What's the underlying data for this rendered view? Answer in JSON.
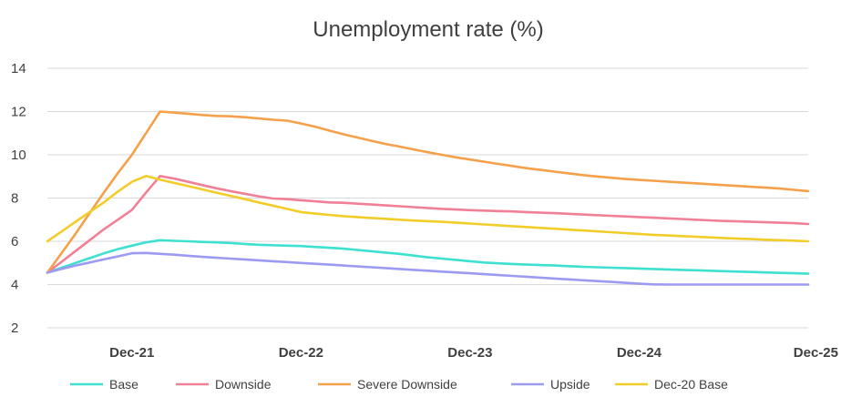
{
  "chart_data": {
    "type": "line",
    "title": "Unemployment rate (%)",
    "xlabel": "",
    "ylabel": "",
    "ylim": [
      1.5,
      14.5
    ],
    "yticks": [
      "2",
      "4",
      "6",
      "8",
      "10",
      "12",
      "14"
    ],
    "grid": true,
    "legend_position": "bottom",
    "x": [
      "Jun-21",
      "Jul-21",
      "Aug-21",
      "Sep-21",
      "Oct-21",
      "Nov-21",
      "Dec-21",
      "Jan-22",
      "Feb-22",
      "Mar-22",
      "Apr-22",
      "May-22",
      "Jun-22",
      "Jul-22",
      "Aug-22",
      "Sep-22",
      "Oct-22",
      "Nov-22",
      "Dec-22",
      "Jan-23",
      "Feb-23",
      "Mar-23",
      "Apr-23",
      "May-23",
      "Jun-23",
      "Jul-23",
      "Aug-23",
      "Sep-23",
      "Oct-23",
      "Nov-23",
      "Dec-23",
      "Jan-24",
      "Feb-24",
      "Mar-24",
      "Apr-24",
      "May-24",
      "Jun-24",
      "Jul-24",
      "Aug-24",
      "Sep-24",
      "Oct-24",
      "Nov-24",
      "Dec-24",
      "Jan-25",
      "Feb-25",
      "Mar-25",
      "Apr-25",
      "May-25",
      "Jun-25",
      "Jul-25",
      "Aug-25",
      "Sep-25",
      "Oct-25",
      "Nov-25",
      "Dec-25"
    ],
    "x_tick_labels": [
      "Dec-21",
      "Dec-22",
      "Dec-23",
      "Dec-24",
      "Dec-25"
    ],
    "series": [
      {
        "name": "Base",
        "color": "#3ee0d0",
        "values": [
          4.55,
          4.78,
          5.0,
          5.22,
          5.44,
          5.64,
          5.8,
          5.95,
          6.05,
          6.02,
          6.0,
          5.97,
          5.95,
          5.92,
          5.88,
          5.84,
          5.82,
          5.8,
          5.78,
          5.74,
          5.7,
          5.66,
          5.6,
          5.54,
          5.48,
          5.42,
          5.34,
          5.26,
          5.2,
          5.14,
          5.08,
          5.02,
          4.98,
          4.95,
          4.92,
          4.9,
          4.88,
          4.85,
          4.82,
          4.8,
          4.78,
          4.76,
          4.74,
          4.72,
          4.7,
          4.68,
          4.66,
          4.64,
          4.62,
          4.6,
          4.58,
          4.56,
          4.54,
          4.52,
          4.5
        ]
      },
      {
        "name": "Downside",
        "color": "#f08096",
        "values": [
          4.55,
          5.05,
          5.55,
          6.05,
          6.55,
          7.0,
          7.45,
          8.25,
          9.02,
          8.9,
          8.75,
          8.6,
          8.45,
          8.32,
          8.2,
          8.08,
          7.98,
          7.95,
          7.9,
          7.85,
          7.8,
          7.78,
          7.74,
          7.7,
          7.66,
          7.62,
          7.58,
          7.54,
          7.5,
          7.47,
          7.44,
          7.42,
          7.4,
          7.38,
          7.35,
          7.32,
          7.3,
          7.27,
          7.24,
          7.21,
          7.18,
          7.15,
          7.12,
          7.09,
          7.06,
          7.03,
          7.0,
          6.97,
          6.94,
          6.92,
          6.9,
          6.88,
          6.86,
          6.84,
          6.8
        ]
      },
      {
        "name": "Severe Downside",
        "color": "#f5a04a",
        "values": [
          4.55,
          5.45,
          6.35,
          7.3,
          8.25,
          9.15,
          10.0,
          11.0,
          12.0,
          11.95,
          11.9,
          11.84,
          11.8,
          11.78,
          11.74,
          11.68,
          11.62,
          11.58,
          11.45,
          11.3,
          11.12,
          10.95,
          10.8,
          10.65,
          10.5,
          10.38,
          10.25,
          10.12,
          10.0,
          9.88,
          9.78,
          9.68,
          9.58,
          9.48,
          9.38,
          9.3,
          9.22,
          9.14,
          9.06,
          9.0,
          8.94,
          8.88,
          8.84,
          8.8,
          8.76,
          8.72,
          8.68,
          8.64,
          8.6,
          8.56,
          8.52,
          8.48,
          8.44,
          8.38,
          8.32
        ]
      },
      {
        "name": "Upside",
        "color": "#9d9af2",
        "values": [
          4.55,
          4.72,
          4.88,
          5.02,
          5.16,
          5.3,
          5.45,
          5.46,
          5.42,
          5.38,
          5.33,
          5.28,
          5.24,
          5.2,
          5.16,
          5.12,
          5.08,
          5.04,
          5.0,
          4.96,
          4.92,
          4.88,
          4.84,
          4.8,
          4.76,
          4.72,
          4.68,
          4.64,
          4.6,
          4.56,
          4.52,
          4.48,
          4.44,
          4.4,
          4.36,
          4.32,
          4.28,
          4.24,
          4.2,
          4.16,
          4.12,
          4.08,
          4.04,
          4.01,
          4.0,
          4.0,
          4.0,
          4.0,
          4.0,
          4.0,
          4.0,
          4.0,
          4.0,
          4.0,
          4.0
        ]
      },
      {
        "name": "Dec-20 Base",
        "color": "#f2cd2a",
        "values": [
          6.0,
          6.45,
          6.9,
          7.35,
          7.8,
          8.3,
          8.75,
          9.02,
          8.85,
          8.7,
          8.55,
          8.4,
          8.25,
          8.1,
          7.95,
          7.8,
          7.65,
          7.5,
          7.35,
          7.28,
          7.22,
          7.16,
          7.12,
          7.08,
          7.04,
          7.0,
          6.96,
          6.93,
          6.9,
          6.86,
          6.82,
          6.78,
          6.74,
          6.7,
          6.66,
          6.62,
          6.58,
          6.54,
          6.5,
          6.46,
          6.42,
          6.38,
          6.34,
          6.3,
          6.27,
          6.24,
          6.21,
          6.18,
          6.15,
          6.12,
          6.1,
          6.07,
          6.05,
          6.03,
          6.0
        ]
      }
    ]
  }
}
